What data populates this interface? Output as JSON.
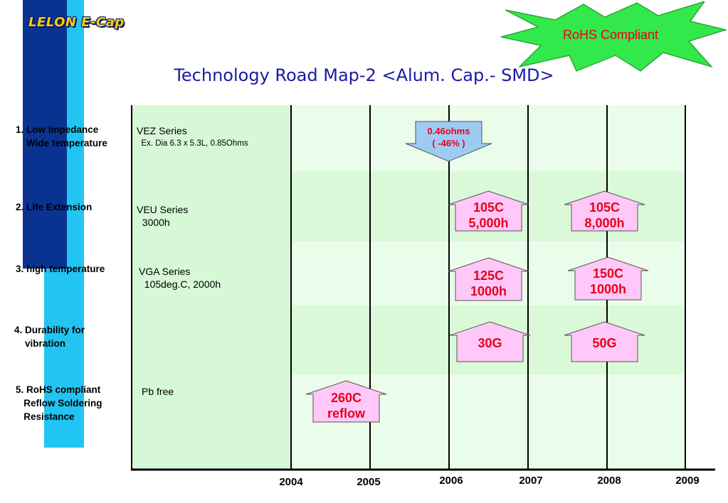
{
  "logo": "LELON E-Cap",
  "badge": "RoHS Compliant",
  "title": "Technology Road Map-2 <Alum. Cap.- SMD>",
  "rows": [
    {
      "label": "1. Low Impedance\n    Wide temperature",
      "series": "VEZ Series",
      "detail": "  Ex. Dia 6.3 x 5.3L, 0.85Ohms"
    },
    {
      "label": "2. Life Extension",
      "series": "VEU Series",
      "detail": "  3000h"
    },
    {
      "label": "3. high temperature",
      "series": "VGA Series",
      "detail": "  105deg.C, 2000h"
    },
    {
      "label": "4. Durability for\n    vibration",
      "series": "",
      "detail": ""
    },
    {
      "label": "5. RoHS compliant\n   Reflow Soldering\n   Resistance",
      "series": "Pb free",
      "detail": ""
    }
  ],
  "years": [
    "2004",
    "2005",
    "2006",
    "2007",
    "2008",
    "2009"
  ],
  "milestones": {
    "impedance_2006": "0.46ohms\n( -46% )",
    "life_2006": "105C\n5,000h",
    "life_2008": "105C\n8,000h",
    "temp_2006": "125C\n1000h",
    "temp_2008": "150C\n1000h",
    "vib_2006": "30G",
    "vib_2008": "50G",
    "reflow_2005": "260C\nreflow"
  },
  "colors": {
    "accent_text": "#e8001c",
    "box_fill": "#ffc8f8",
    "down_arrow_fill": "#9ecbf2",
    "panel_green": "#d8f8d8",
    "title_blue": "#1a1aa8",
    "star_green": "#33e84a"
  }
}
